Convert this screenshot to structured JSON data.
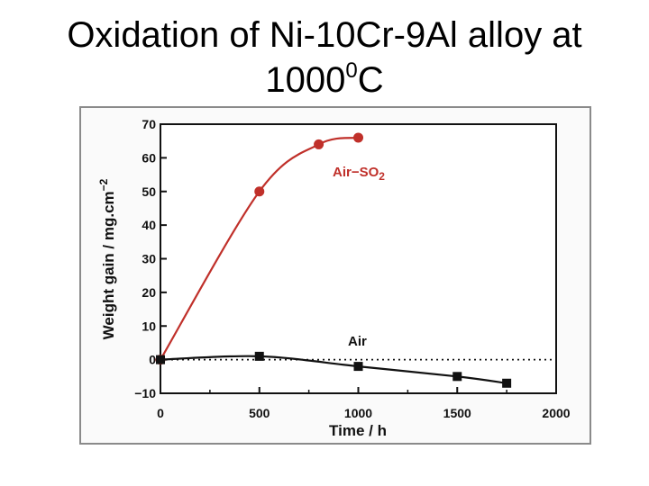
{
  "slide": {
    "title_line1": "Oxidation of Ni-10Cr-9Al alloy at",
    "title_line2_main": "1000",
    "title_line2_sup": "0",
    "title_line2_end": "C"
  },
  "chart_data": {
    "type": "line",
    "title": "",
    "xlabel": "Time  /  h",
    "ylabel": "Weight  gain  /  mg.cm",
    "ylabel_sup": "−2",
    "xlim": [
      0,
      2000
    ],
    "ylim": [
      -10,
      70
    ],
    "xticks": [
      0,
      500,
      1000,
      1500,
      2000
    ],
    "xtick_labels": [
      "0",
      "500",
      "1000",
      "1500",
      "2000"
    ],
    "yticks": [
      -10,
      0,
      10,
      20,
      30,
      40,
      50,
      60,
      70
    ],
    "ytick_labels": [
      "−10",
      "0",
      "10",
      "20",
      "30",
      "40",
      "50",
      "60",
      "70"
    ],
    "grid": false,
    "reference_line": {
      "y": 0,
      "style": "dotted"
    },
    "series": [
      {
        "name": "Air−SO",
        "name_sub": "2",
        "color": "#c0302a",
        "marker": "circle",
        "x": [
          0,
          500,
          800,
          1000
        ],
        "y": [
          0,
          50,
          64,
          66
        ]
      },
      {
        "name": "Air",
        "color": "#111111",
        "marker": "square",
        "x": [
          0,
          500,
          1000,
          1500,
          1750
        ],
        "y": [
          0,
          1,
          -2,
          -5,
          -7
        ]
      }
    ]
  }
}
